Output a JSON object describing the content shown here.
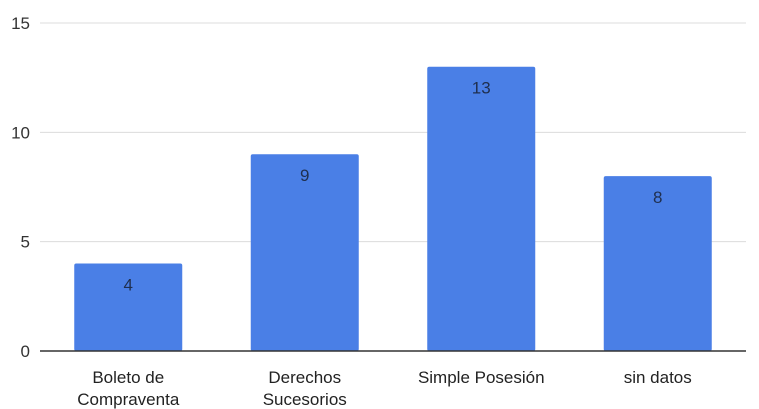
{
  "chart_data": {
    "type": "bar",
    "categories": [
      [
        "Boleto de",
        "Compraventa"
      ],
      [
        "Derechos",
        "Sucesorios"
      ],
      [
        "Simple Posesión"
      ],
      [
        "sin datos"
      ]
    ],
    "values": [
      4,
      9,
      13,
      8
    ],
    "data_labels": [
      "4",
      "9",
      "13",
      "8"
    ],
    "y_ticks": [
      0,
      5,
      10,
      15
    ],
    "ylim": [
      0,
      15
    ],
    "grid": true,
    "legend": "none",
    "bar_color": "#4a7fe6"
  }
}
